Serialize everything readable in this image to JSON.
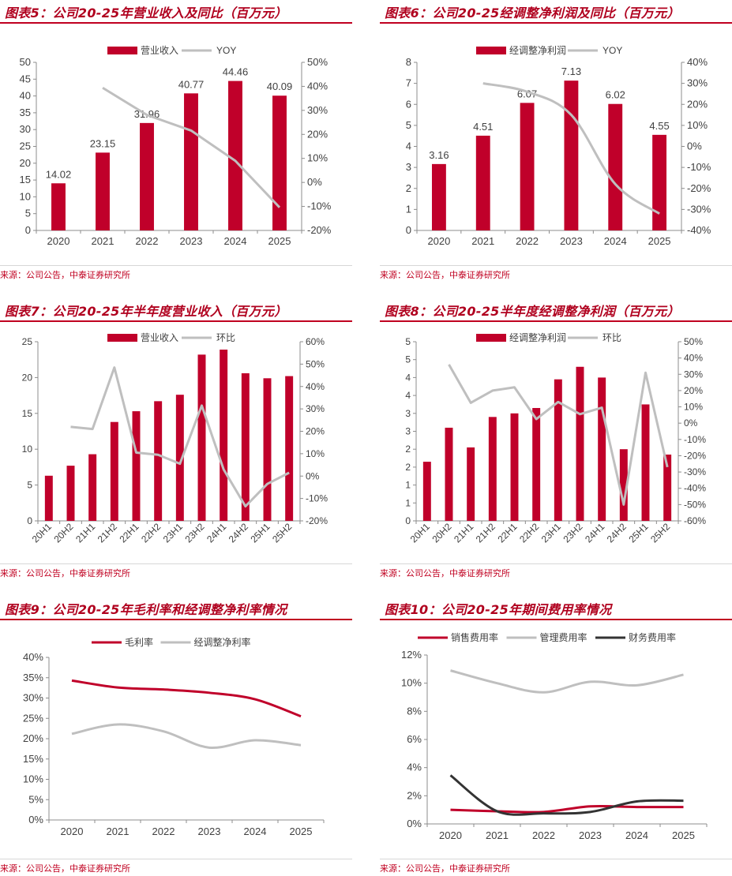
{
  "source_text": "来源：公司公告，中泰证券研究所",
  "colors": {
    "bar": "#c0002a",
    "line_red": "#c0002a",
    "line_gray": "#bfbfbf",
    "line_dark": "#333333",
    "title": "#b0001e"
  },
  "chart_data": [
    {
      "id": "chart5",
      "title": "图表5：公司20-25年营业收入及同比（百万元）",
      "type": "bar+line",
      "categories": [
        "2020",
        "2021",
        "2022",
        "2023",
        "2024",
        "2025"
      ],
      "bar_series": {
        "name": "营业收入",
        "values": [
          14.02,
          23.15,
          31.96,
          40.77,
          44.46,
          40.09
        ],
        "labels": [
          "14.02",
          "23.15",
          "31.96",
          "40.77",
          "44.46",
          "40.09"
        ]
      },
      "line_series": {
        "name": "YOY",
        "values": [
          null,
          39.4,
          28.1,
          21.6,
          9.0,
          -10.4
        ]
      },
      "ylim_left": [
        0,
        50
      ],
      "yticks_left": [
        "0",
        "5",
        "10",
        "15",
        "20",
        "25",
        "30",
        "35",
        "40",
        "45",
        "50"
      ],
      "ylim_right": [
        -20,
        50
      ],
      "yticks_right": [
        "-20%",
        "-10%",
        "0%",
        "10%",
        "20%",
        "30%",
        "40%",
        "50%"
      ]
    },
    {
      "id": "chart6",
      "title": "图表6：公司20-25经调整净利润及同比（百万元）",
      "type": "bar+line",
      "categories": [
        "2020",
        "2021",
        "2022",
        "2023",
        "2024",
        "2025"
      ],
      "bar_series": {
        "name": "经调整净利润",
        "values": [
          3.16,
          4.51,
          6.07,
          7.13,
          6.02,
          4.55
        ],
        "labels": [
          "3.16",
          "4.51",
          "6.07",
          "7.13",
          "6.02",
          "4.55"
        ]
      },
      "line_series": {
        "name": "YOY",
        "values": [
          null,
          30,
          26,
          15,
          -18,
          -32
        ]
      },
      "ylim_left": [
        0,
        8
      ],
      "yticks_left": [
        "0",
        "1",
        "2",
        "3",
        "4",
        "5",
        "6",
        "7",
        "8"
      ],
      "ylim_right": [
        -40,
        40
      ],
      "yticks_right": [
        "-40%",
        "-30%",
        "-20%",
        "-10%",
        "0%",
        "10%",
        "20%",
        "30%",
        "40%"
      ]
    },
    {
      "id": "chart7",
      "title": "图表7：公司20-25年半年度营业收入（百万元）",
      "type": "bar+line",
      "categories": [
        "20H1",
        "20H2",
        "21H1",
        "21H2",
        "22H1",
        "22H2",
        "23H1",
        "23H2",
        "24H1",
        "24H2",
        "25H1",
        "25H2"
      ],
      "bar_series": {
        "name": "营业收入",
        "values": [
          6.3,
          7.7,
          9.3,
          13.8,
          15.3,
          16.7,
          17.6,
          23.2,
          23.9,
          20.6,
          19.9,
          20.2
        ]
      },
      "line_series": {
        "name": "环比",
        "values": [
          null,
          22,
          21,
          48.5,
          10.5,
          9.5,
          5.5,
          31.5,
          3,
          -13.5,
          -3.5,
          1.5
        ]
      },
      "ylim_left": [
        0,
        25
      ],
      "yticks_left": [
        "0",
        "5",
        "10",
        "15",
        "20",
        "25"
      ],
      "ylim_right": [
        -20,
        60
      ],
      "yticks_right": [
        "-20%",
        "-10%",
        "0%",
        "10%",
        "20%",
        "30%",
        "40%",
        "50%",
        "60%"
      ]
    },
    {
      "id": "chart8",
      "title": "图表8：公司20-25半年度经调整净利润（百万元）",
      "type": "bar+line",
      "categories": [
        "20H1",
        "20H2",
        "21H1",
        "21H2",
        "22H1",
        "22H2",
        "23H1",
        "23H2",
        "24H1",
        "24H2",
        "25H1",
        "25H2"
      ],
      "bar_series": {
        "name": "经调整净利润",
        "values": [
          1.65,
          2.6,
          2.05,
          2.9,
          3.0,
          3.15,
          3.95,
          4.3,
          4.0,
          2.0,
          3.25,
          1.85
        ]
      },
      "line_series": {
        "name": "环比",
        "values": [
          null,
          36,
          12.5,
          20,
          22,
          2.5,
          13,
          5.5,
          9.5,
          -50,
          31,
          -27
        ]
      },
      "ylim_left": [
        0,
        5
      ],
      "yticks_left": [
        "0",
        "1",
        "1",
        "2",
        "2",
        "3",
        "3",
        "4",
        "4",
        "5",
        "5"
      ],
      "ylim_right": [
        -60,
        50
      ],
      "yticks_right": [
        "-60%",
        "-50%",
        "-40%",
        "-30%",
        "-20%",
        "-10%",
        "0%",
        "10%",
        "20%",
        "30%",
        "40%",
        "50%"
      ]
    },
    {
      "id": "chart9",
      "title": "图表9：公司20-25年毛利率和经调整净利率情况",
      "type": "line",
      "categories": [
        "2020",
        "2021",
        "2022",
        "2023",
        "2024",
        "2025"
      ],
      "series": [
        {
          "name": "毛利率",
          "values": [
            34.3,
            32.6,
            32.1,
            31.3,
            29.7,
            25.5
          ],
          "color": "#c0002a"
        },
        {
          "name": "经调整净利率",
          "values": [
            21.2,
            23.5,
            21.8,
            17.8,
            19.6,
            18.4
          ],
          "color": "#bfbfbf"
        }
      ],
      "ylim": [
        0,
        40
      ],
      "yticks": [
        "0%",
        "5%",
        "10%",
        "15%",
        "20%",
        "25%",
        "30%",
        "35%",
        "40%"
      ]
    },
    {
      "id": "chart10",
      "title": "图表10：公司20-25年期间费用率情况",
      "type": "line",
      "categories": [
        "2020",
        "2021",
        "2022",
        "2023",
        "2024",
        "2025"
      ],
      "series": [
        {
          "name": "销售费用率",
          "values": [
            1.0,
            0.9,
            0.85,
            1.25,
            1.2,
            1.2
          ],
          "color": "#c0002a"
        },
        {
          "name": "管理费用率",
          "values": [
            10.9,
            10.0,
            9.35,
            10.1,
            9.85,
            10.6
          ],
          "color": "#bfbfbf"
        },
        {
          "name": "财务费用率",
          "values": [
            3.45,
            0.9,
            0.75,
            0.85,
            1.6,
            1.65
          ],
          "color": "#333333"
        }
      ],
      "ylim": [
        0,
        12
      ],
      "yticks": [
        "0%",
        "2%",
        "4%",
        "6%",
        "8%",
        "10%",
        "12%"
      ]
    }
  ]
}
